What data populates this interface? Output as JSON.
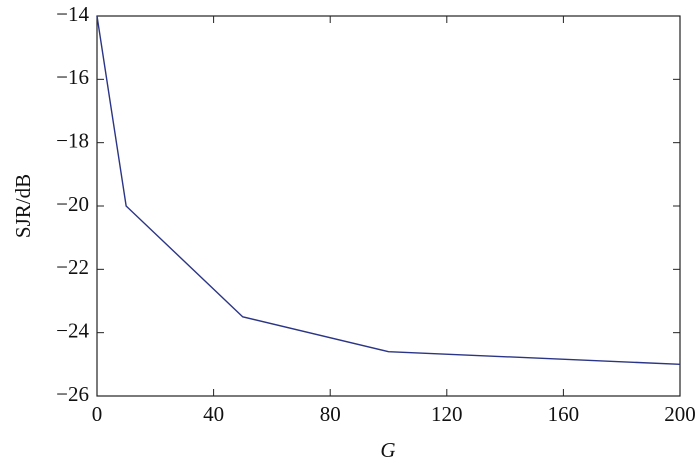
{
  "chart_data": {
    "type": "line",
    "xlabel": "G",
    "ylabel": "SJR/dB",
    "x": [
      0,
      10,
      50,
      100,
      200
    ],
    "series": [
      {
        "name": "SJR",
        "color": "#2b3585",
        "values": [
          -14,
          -20,
          -23.5,
          -24.6,
          -25
        ]
      }
    ],
    "xlim": [
      0,
      200
    ],
    "xticks": [
      0,
      40,
      80,
      120,
      160,
      200
    ],
    "ylim": [
      -26,
      -14
    ],
    "yticks": [
      {
        "value": -14,
        "label": "−14"
      },
      {
        "value": -16,
        "label": "−16"
      },
      {
        "value": -18,
        "label": "−18"
      },
      {
        "value": -20,
        "label": "−20"
      },
      {
        "value": -22,
        "label": "−22"
      },
      {
        "value": -24,
        "label": "−24"
      },
      {
        "value": -26,
        "label": "−26"
      }
    ],
    "grid": false
  }
}
